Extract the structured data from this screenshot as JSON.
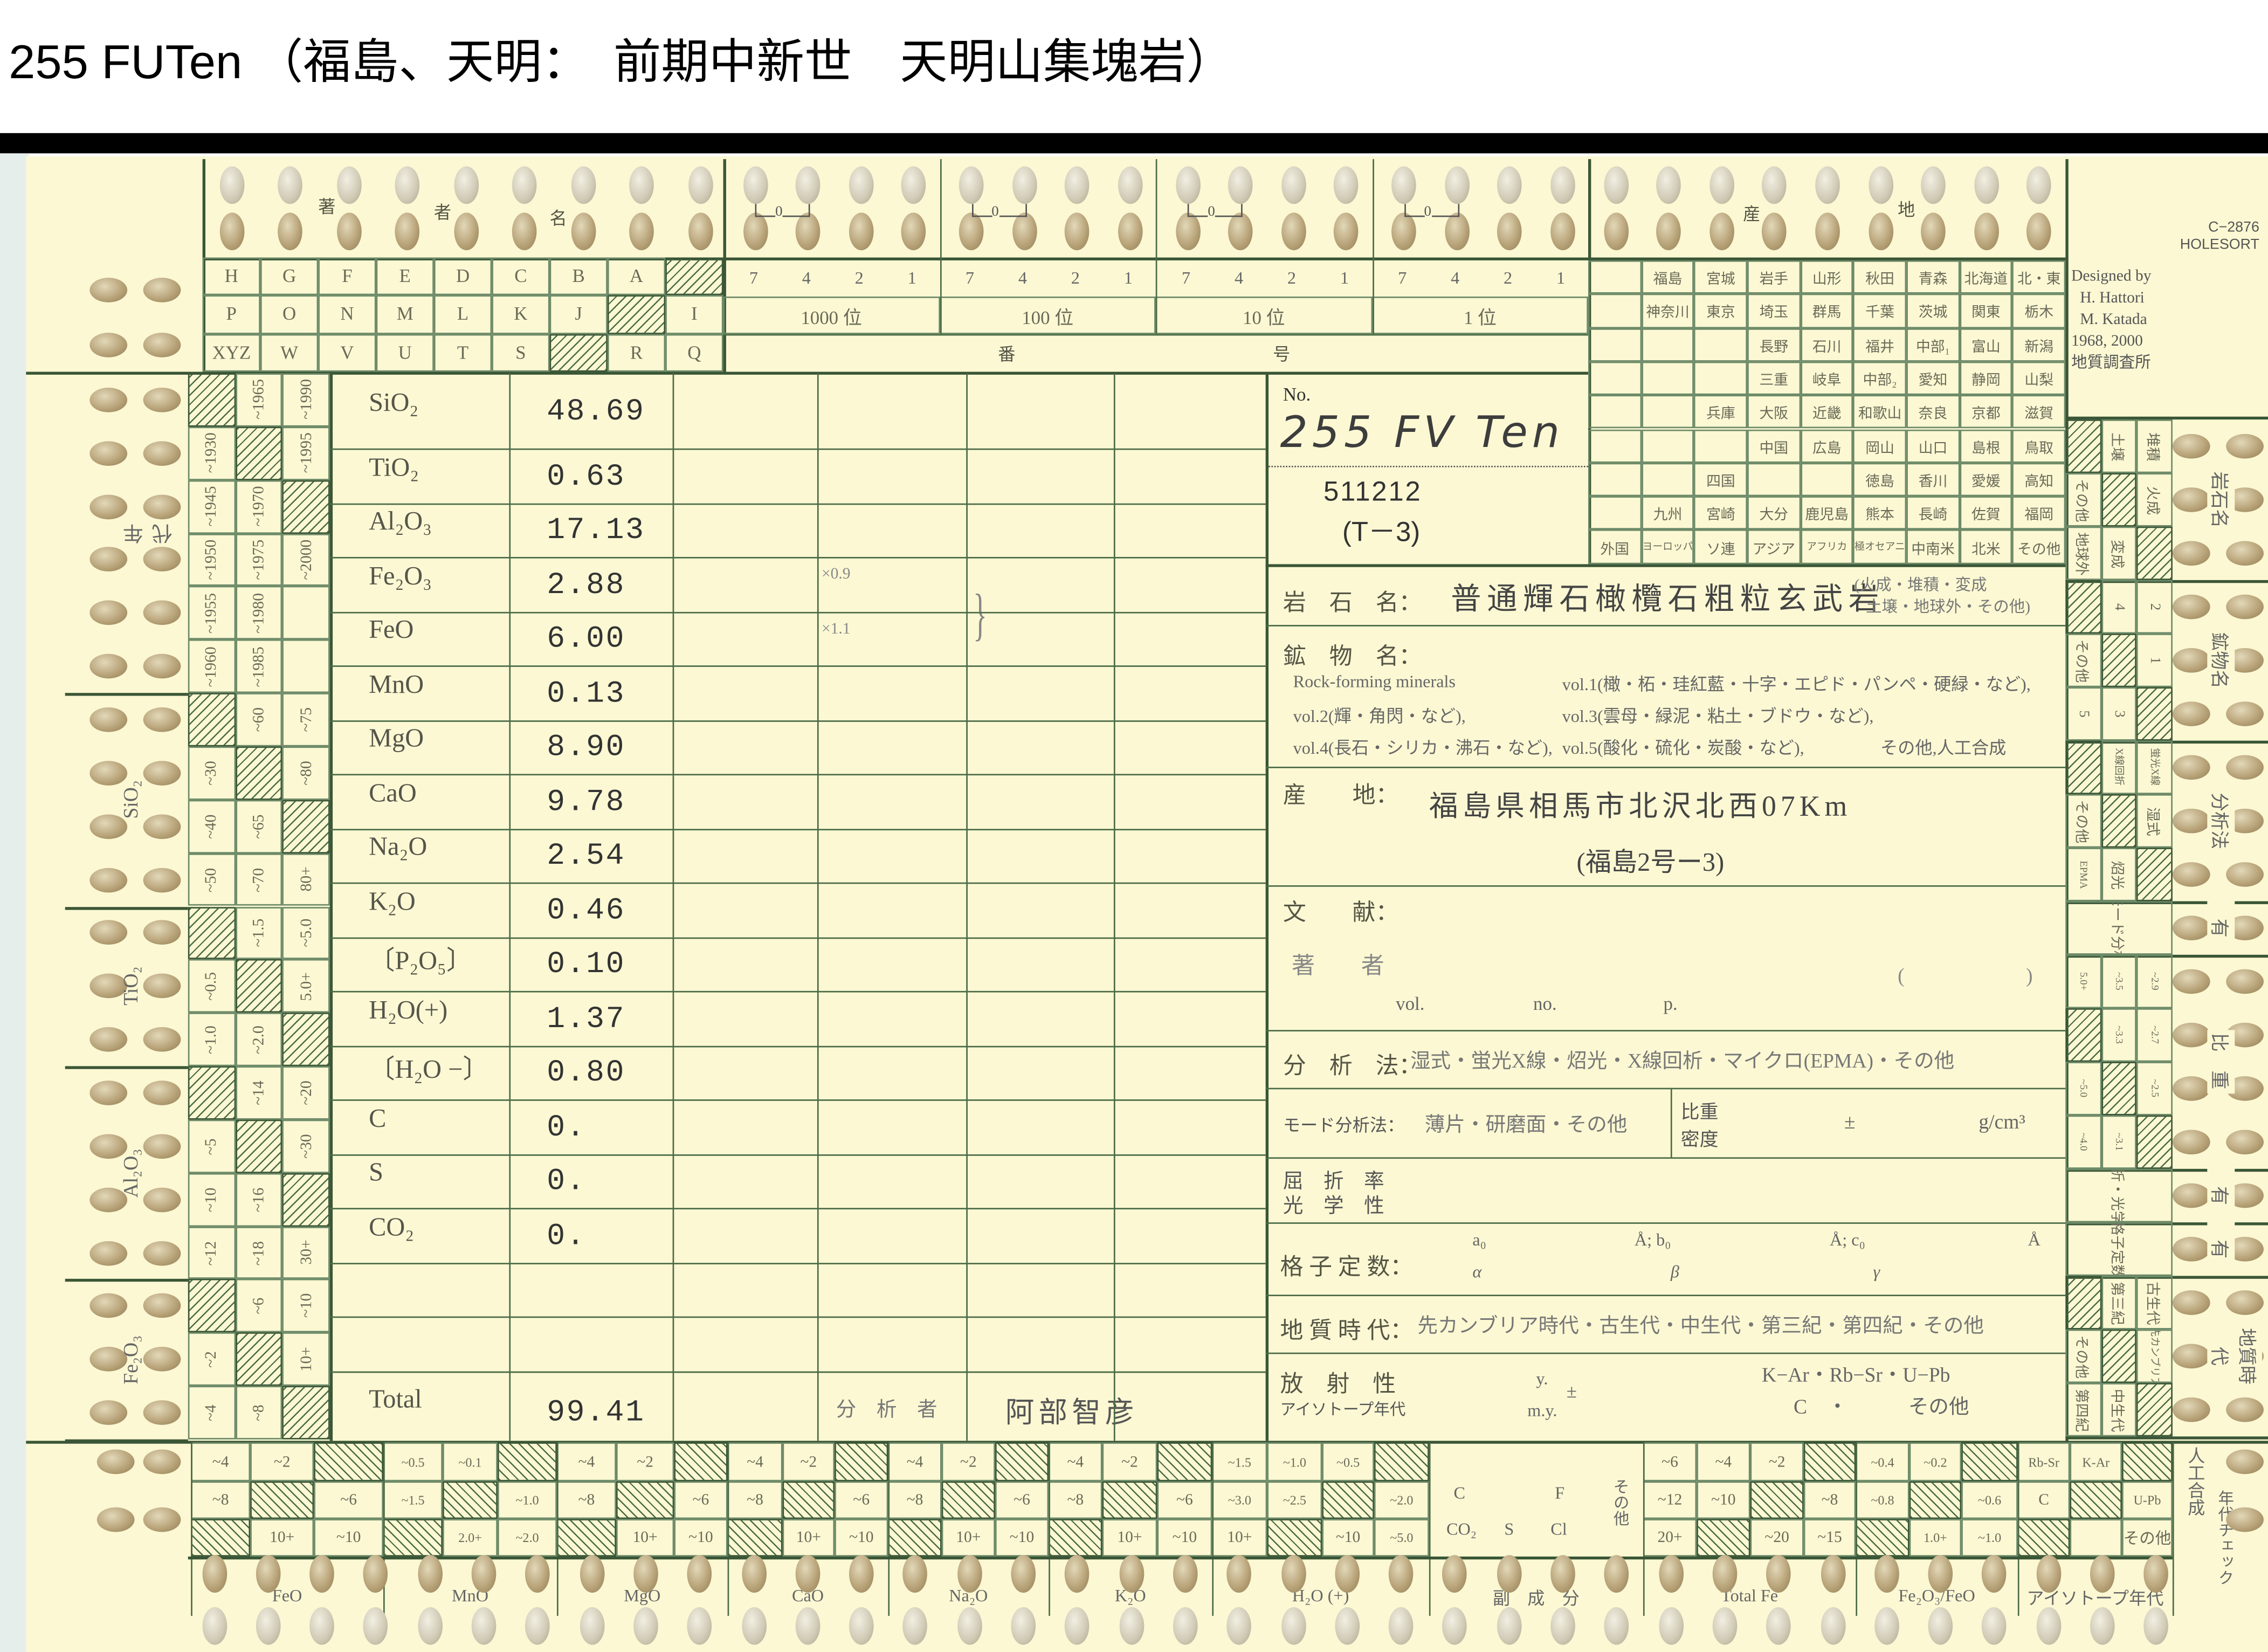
{
  "title": "255 FUTen （福島、天明：　前期中新世　天明山集塊岩）",
  "colors": {
    "card": "#fbf8d3",
    "line": "#3a5636",
    "title_bar": "#000000"
  },
  "author_index": {
    "label": [
      "著",
      "者",
      "名"
    ],
    "rows": [
      [
        "H",
        "G",
        "F",
        "E",
        "D",
        "C",
        "B",
        "A",
        null
      ],
      [
        "P",
        "O",
        "N",
        "M",
        "L",
        "K",
        "J",
        null,
        "I"
      ],
      [
        "XYZ",
        "W",
        "V",
        "U",
        "T",
        "S",
        null,
        "R",
        "Q"
      ]
    ]
  },
  "number_index": {
    "bracket": "0",
    "digits": [
      "7",
      "4",
      "2",
      "1"
    ],
    "places": [
      "1000 位",
      "100 位",
      "10 位",
      "1 位"
    ],
    "label": [
      "番",
      "号"
    ]
  },
  "origin_index": {
    "label": [
      "産",
      "地"
    ],
    "rows": [
      [
        "",
        "福島",
        "宮城",
        "岩手",
        "山形",
        "秋田",
        "青森",
        "北海道",
        "北・東"
      ],
      [
        "",
        "神奈川",
        "東京",
        "埼玉",
        "群馬",
        "千葉",
        "茨城",
        "関東",
        "栃木"
      ],
      [
        "",
        "",
        "",
        "長野",
        "石川",
        "福井",
        "中部₁",
        "富山",
        "新潟"
      ],
      [
        "",
        "",
        "",
        "三重",
        "岐阜",
        "中部₂",
        "愛知",
        "静岡",
        "山梨"
      ],
      [
        "",
        "",
        "兵庫",
        "大阪",
        "近畿",
        "和歌山",
        "奈良",
        "京都",
        "滋賀"
      ],
      [
        "",
        "",
        "",
        "中国",
        "広島",
        "岡山",
        "山口",
        "島根",
        "鳥取"
      ],
      [
        "",
        "",
        "四国",
        "",
        "",
        "徳島",
        "香川",
        "愛媛",
        "高知"
      ],
      [
        "",
        "九州",
        "宮崎",
        "大分",
        "鹿児島",
        "熊本",
        "長崎",
        "佐賀",
        "福岡"
      ],
      [
        "外国",
        "ヨーロッパ",
        "ソ連",
        "アジア",
        "アフリカ",
        "南極オセアニア",
        "中南米",
        "北米",
        "その他"
      ]
    ]
  },
  "designer": {
    "code": "C−2876",
    "brand": "HOLESORT",
    "designed_by": "Designed by",
    "name1": "H. Hattori",
    "name2": "M. Katada",
    "years": "1968, 2000",
    "org": "地質調査所"
  },
  "left_strip": [
    {
      "label": "年　代",
      "rows": [
        [
          null,
          "~1965",
          "~1990"
        ],
        [
          "~1930",
          null,
          "~1995"
        ],
        [
          "~1945",
          "~1970",
          null
        ],
        [
          "~1950",
          "~1975",
          "~2000"
        ],
        [
          "~1955",
          "~1980",
          ""
        ],
        [
          "~1960",
          "~1985",
          ""
        ]
      ]
    },
    {
      "label": "SiO₂",
      "rows": [
        [
          null,
          "~60",
          "~75"
        ],
        [
          "~30",
          null,
          "~80"
        ],
        [
          "~40",
          "~65",
          null
        ],
        [
          "~50",
          "~70",
          "80+"
        ]
      ]
    },
    {
      "label": "TiO₂",
      "rows": [
        [
          null,
          "~1.5",
          "~5.0"
        ],
        [
          "~0.5",
          null,
          "5.0+"
        ],
        [
          "~1.0",
          "~2.0",
          null
        ]
      ]
    },
    {
      "label": "Al₂O₃",
      "rows": [
        [
          null,
          "~14",
          "~20"
        ],
        [
          "~5",
          null,
          "~30"
        ],
        [
          "~10",
          "~16",
          null
        ],
        [
          "~12",
          "~18",
          "30+"
        ]
      ]
    },
    {
      "label": "Fe₂O₃",
      "rows": [
        [
          null,
          "~6",
          "~10"
        ],
        [
          "~2",
          null,
          "10+"
        ],
        [
          "~4",
          "~8",
          null
        ]
      ]
    }
  ],
  "chem": {
    "rows": [
      {
        "label": "SiO₂",
        "value": "48.69"
      },
      {
        "label": "TiO₂",
        "value": "0.63"
      },
      {
        "label": "Al₂O₃",
        "value": "17.13"
      },
      {
        "label": "Fe₂O₃",
        "value": "2.88"
      },
      {
        "label": "FeO",
        "value": "6.00"
      },
      {
        "label": "MnO",
        "value": "0.13"
      },
      {
        "label": "MgO",
        "value": "8.90"
      },
      {
        "label": "CaO",
        "value": "9.78"
      },
      {
        "label": "Na₂O",
        "value": "2.54"
      },
      {
        "label": "K₂O",
        "value": "0.46"
      },
      {
        "label": "〔P₂O₅〕",
        "value": "0.10"
      },
      {
        "label": "H₂O(+)",
        "value": "1.37"
      },
      {
        "label": "〔H₂O −〕",
        "value": "0.80"
      },
      {
        "label": "C",
        "value": "0."
      },
      {
        "label": "S",
        "value": "0."
      },
      {
        "label": "CO₂",
        "value": "0."
      }
    ],
    "factor_1": "×0.9",
    "factor_2": "×1.1",
    "total_label": "Total",
    "total_value": "99.41",
    "analyst_label": "分　析　者",
    "analyst": "阿部智彦"
  },
  "info": {
    "no_label": "No.",
    "sample_no": "255 FV Ten",
    "sample_code": "511212",
    "sample_sub": "(T－3)",
    "rock_label": "岩　石　名：",
    "rock_name": "普通輝石橄欖石粗粒玄武岩",
    "rock_class_1": "(火成・堆積・変成",
    "rock_class_2": "土壌・地球外・その他)",
    "mineral_label": "鉱　物　名：",
    "mineral_lines": [
      "Rock-forming minerals",
      "vol.1(橄・柘・珪紅藍・十字・エピド・パンペ・硬緑・など),",
      "vol.2(輝・角閃・など),",
      "vol.3(雲母・緑泥・粘土・ブドウ・など),",
      "vol.4(長石・シリカ・沸石・など),",
      "vol.5(酸化・硫化・炭酸・など),",
      "その他,人工合成"
    ],
    "locality_label": "産　　地：",
    "locality": "福島県相馬市北沢北西07Km",
    "locality_sub": "(福島2号ー3)",
    "ref_label": "文　　献：",
    "author_label": "著　　者",
    "vol": "vol.",
    "no": "no.",
    "p": "p.",
    "paren": "(　　　　　　)",
    "method_label": "分　析　法：",
    "method_options": "湿式・蛍光X線・炤光・X線回析・マイクロ(EPMA)・その他",
    "mode_label": "モード分析法：",
    "mode_options": "薄片・研磨面・その他",
    "density_label_1": "比重",
    "density_label_2": "密度",
    "pm": "±",
    "density_unit": "g/cm³",
    "refr_label_1": "屈　折　率",
    "refr_label_2": "光　学　性",
    "lattice_label": "格 子 定 数：",
    "a0": "a₀",
    "b0": "Å; b₀",
    "c0": "Å; c₀",
    "ang": "Å",
    "alpha": "α",
    "beta": "β",
    "gamma": "γ",
    "geo_label": "地 質 時 代：",
    "geo_options": "先カンブリア時代・古生代・中生代・第三紀・第四紀・その他",
    "rad_label": "放　射　性",
    "iso_label": "アイソトープ年代",
    "y": "y.",
    "my": "m.y.",
    "pm2": "±",
    "rad_methods_1": "K−Ar・Rb−Sr・U−Pb",
    "rad_methods_2": "C　・　　　その他"
  },
  "right_strip": [
    {
      "label": "岩石名",
      "rows": [
        [
          null,
          "土壌",
          "堆積"
        ],
        [
          "その他",
          null,
          "火成"
        ],
        [
          "地球外",
          "変成",
          null
        ]
      ]
    },
    {
      "label": "鉱物名",
      "rows": [
        [
          null,
          "4",
          "2"
        ],
        [
          "その他",
          null,
          "1"
        ],
        [
          "5",
          "3",
          null
        ]
      ]
    },
    {
      "label": "分析法",
      "rows": [
        [
          null,
          "X線回折",
          "蛍光X線"
        ],
        [
          "その他",
          null,
          "湿式"
        ],
        [
          "EPMA",
          "炤光",
          null
        ]
      ]
    },
    {
      "label": "有",
      "merged": "モード分析"
    },
    {
      "label": "比　重",
      "rows": [
        [
          "5.0+",
          "~3.5",
          "~2.9"
        ],
        [
          null,
          "~3.3",
          "~2.7"
        ],
        [
          "~5.0",
          null,
          "~2.5"
        ],
        [
          "~4.0",
          "~3.1",
          null
        ]
      ]
    },
    {
      "label": "有",
      "merged": "屈折・光学性"
    },
    {
      "label": "有",
      "merged": "格子定数"
    },
    {
      "label": "地質時代",
      "rows": [
        [
          null,
          "第三紀",
          "古生代"
        ],
        [
          "その他",
          null,
          "先カンブリア"
        ],
        [
          "第四紀",
          "中生代",
          null
        ]
      ]
    }
  ],
  "right_bottom_labels": [
    "人工合成",
    "年代チェック"
  ],
  "bottom_strip": [
    {
      "label": "FeO",
      "rows": [
        [
          "~4",
          "~2",
          null
        ],
        [
          "~8",
          null,
          "~6"
        ],
        [
          null,
          "10+",
          "~10"
        ]
      ]
    },
    {
      "label": "MnO",
      "rows": [
        [
          "~0.5",
          "~0.1",
          null
        ],
        [
          "~1.5",
          null,
          "~1.0"
        ],
        [
          null,
          "2.0+",
          "~2.0"
        ]
      ]
    },
    {
      "label": "MgO",
      "rows": [
        [
          "~4",
          "~2",
          null
        ],
        [
          "~8",
          null,
          "~6"
        ],
        [
          null,
          "10+",
          "~10"
        ]
      ]
    },
    {
      "label": "CaO",
      "rows": [
        [
          "~4",
          "~2",
          null
        ],
        [
          "~8",
          null,
          "~6"
        ],
        [
          null,
          "10+",
          "~10"
        ]
      ]
    },
    {
      "label": "Na₂O",
      "rows": [
        [
          "~4",
          "~2",
          null
        ],
        [
          "~8",
          null,
          "~6"
        ],
        [
          null,
          "10+",
          "~10"
        ]
      ]
    },
    {
      "label": "K₂O",
      "rows": [
        [
          "~4",
          "~2",
          null
        ],
        [
          "~8",
          null,
          "~6"
        ],
        [
          null,
          "10+",
          "~10"
        ]
      ]
    },
    {
      "label": "H₂O (+)",
      "rows": [
        [
          "~1.5",
          "~1.0",
          "~0.5",
          null
        ],
        [
          "~3.0",
          "~2.5",
          null,
          "~2.0"
        ],
        [
          "10+",
          null,
          "~10",
          "~5.0"
        ]
      ]
    },
    {
      "label": "副　成　分",
      "free": [
        "C",
        "F",
        "CO₂",
        "S",
        "Cl",
        "その他"
      ]
    },
    {
      "label": "Total Fe",
      "rows": [
        [
          "~6",
          "~4",
          "~2",
          null
        ],
        [
          "~12",
          "~10",
          null,
          "~8"
        ],
        [
          "20+",
          null,
          "~20",
          "~15"
        ]
      ]
    },
    {
      "label": "Fe₂O₃/FeO",
      "rows": [
        [
          "~0.4",
          "~0.2",
          null
        ],
        [
          "~0.8",
          null,
          "~0.6"
        ],
        [
          null,
          "1.0+",
          "~1.0"
        ]
      ]
    },
    {
      "label": "アイソトープ年代",
      "rows": [
        [
          "Rb-Sr",
          "K-Ar",
          null
        ],
        [
          "C",
          null,
          "U-Pb"
        ],
        [
          null,
          "",
          "その他"
        ]
      ]
    }
  ]
}
